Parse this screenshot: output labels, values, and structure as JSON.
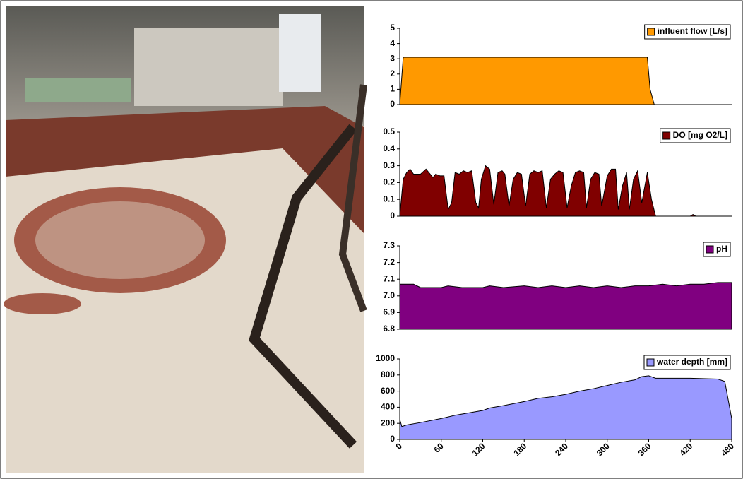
{
  "chart_data": [
    {
      "type": "area",
      "legend": "upper right",
      "grid": false,
      "x": [
        0,
        5,
        358,
        362,
        368,
        480
      ],
      "series": [
        {
          "name": "influent flow [L/s]",
          "color": "#ff9900",
          "values": [
            0,
            3.1,
            3.1,
            1,
            0,
            0
          ]
        }
      ],
      "xlim": [
        0,
        480
      ],
      "ylim": [
        0,
        5
      ],
      "yticks": [
        0,
        1,
        2,
        3,
        4,
        5
      ]
    },
    {
      "type": "area",
      "legend": "upper right",
      "grid": false,
      "x": [
        0,
        5,
        10,
        15,
        20,
        30,
        38,
        44,
        48,
        52,
        58,
        64,
        70,
        75,
        80,
        86,
        92,
        98,
        104,
        110,
        114,
        118,
        124,
        130,
        136,
        142,
        148,
        152,
        158,
        164,
        170,
        176,
        182,
        188,
        194,
        200,
        206,
        212,
        218,
        224,
        230,
        236,
        242,
        248,
        254,
        260,
        266,
        270,
        276,
        282,
        288,
        292,
        300,
        306,
        312,
        316,
        322,
        328,
        332,
        338,
        344,
        350,
        358,
        364,
        370,
        420,
        424,
        428,
        480
      ],
      "series": [
        {
          "name": "DO [mg O2/L]",
          "color": "#800000",
          "values": [
            0,
            0.22,
            0.26,
            0.28,
            0.25,
            0.25,
            0.28,
            0.25,
            0.23,
            0.25,
            0.24,
            0.24,
            0.04,
            0.08,
            0.26,
            0.25,
            0.27,
            0.26,
            0.27,
            0.08,
            0.05,
            0.22,
            0.3,
            0.28,
            0.07,
            0.26,
            0.27,
            0.25,
            0.06,
            0.22,
            0.26,
            0.25,
            0.06,
            0.25,
            0.27,
            0.26,
            0.27,
            0.05,
            0.22,
            0.25,
            0.27,
            0.26,
            0.05,
            0.18,
            0.26,
            0.27,
            0.26,
            0.05,
            0.22,
            0.26,
            0.25,
            0.06,
            0.24,
            0.28,
            0.28,
            0.04,
            0.18,
            0.26,
            0.04,
            0.22,
            0.27,
            0.08,
            0.26,
            0.1,
            0,
            0,
            0.01,
            0,
            0
          ]
        }
      ],
      "xlim": [
        0,
        480
      ],
      "ylim": [
        0,
        0.5
      ],
      "yticks": [
        0,
        0.1,
        0.2,
        0.3,
        0.4,
        0.5
      ]
    },
    {
      "type": "area",
      "legend": "upper right",
      "grid": false,
      "x": [
        0,
        20,
        30,
        60,
        70,
        90,
        120,
        130,
        150,
        180,
        200,
        220,
        240,
        260,
        280,
        300,
        320,
        340,
        360,
        380,
        400,
        420,
        440,
        460,
        480
      ],
      "series": [
        {
          "name": "pH",
          "color": "#800080",
          "values": [
            7.07,
            7.07,
            7.05,
            7.05,
            7.06,
            7.05,
            7.05,
            7.06,
            7.05,
            7.06,
            7.05,
            7.06,
            7.05,
            7.06,
            7.05,
            7.06,
            7.05,
            7.06,
            7.06,
            7.07,
            7.06,
            7.07,
            7.07,
            7.08,
            7.08
          ]
        }
      ],
      "xlim": [
        0,
        480
      ],
      "ylim": [
        6.8,
        7.3
      ],
      "yticks": [
        {
          "value": 6.8,
          "label": "6.8"
        },
        {
          "value": 6.9,
          "label": "6.9"
        },
        {
          "value": 7,
          "label": "7.0"
        },
        {
          "value": 7.1,
          "label": "7.1"
        },
        {
          "value": 7.2,
          "label": "7.2"
        },
        {
          "value": 7.3,
          "label": "7.3"
        }
      ]
    },
    {
      "type": "area",
      "legend": "upper right",
      "grid": false,
      "x": [
        0,
        3,
        10,
        30,
        60,
        80,
        100,
        120,
        130,
        150,
        180,
        200,
        220,
        240,
        260,
        280,
        300,
        320,
        340,
        350,
        360,
        370,
        420,
        460,
        470,
        480
      ],
      "series": [
        {
          "name": "water depth [mm]",
          "color": "#9999ff",
          "values": [
            250,
            160,
            180,
            210,
            260,
            300,
            330,
            360,
            390,
            420,
            470,
            510,
            530,
            560,
            600,
            630,
            670,
            710,
            740,
            780,
            790,
            760,
            760,
            750,
            720,
            260
          ]
        }
      ],
      "xlim": [
        0,
        480
      ],
      "ylim": [
        0,
        1000
      ],
      "yticks": [
        0,
        200,
        400,
        600,
        800,
        1000
      ],
      "xticks": [
        0,
        60,
        120,
        180,
        240,
        300,
        360,
        420,
        480
      ]
    }
  ]
}
